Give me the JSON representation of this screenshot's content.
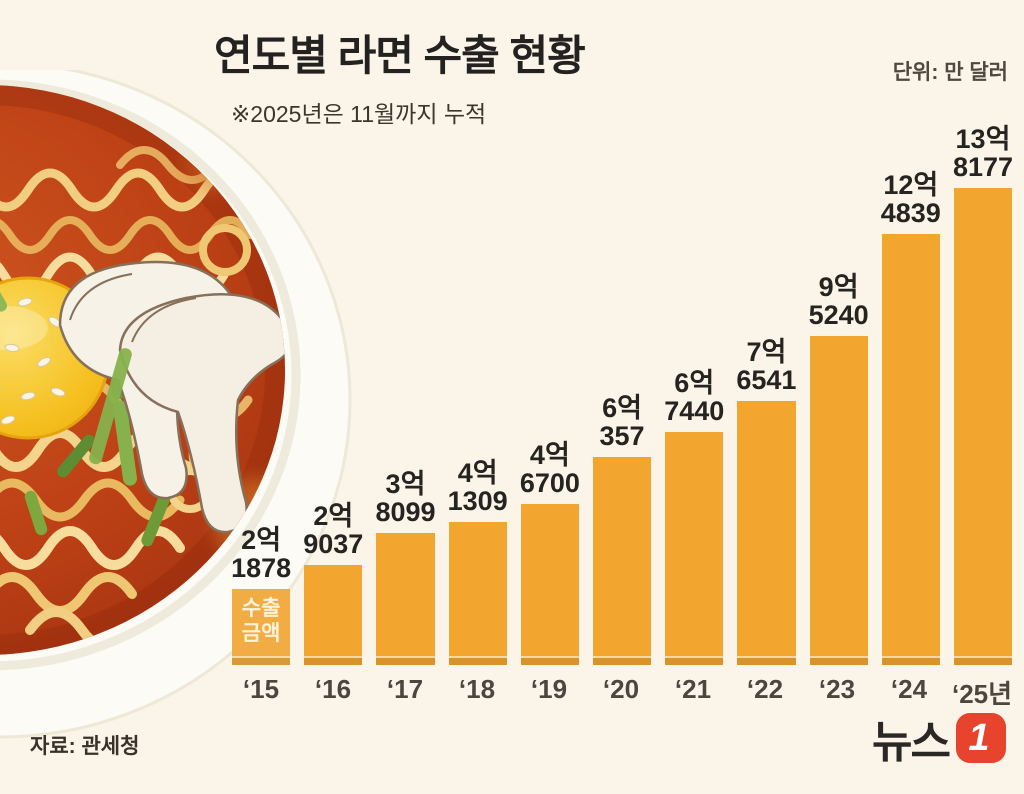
{
  "header": {
    "title": "연도별 라면 수출 현황",
    "subtitle": "※2025년은 11월까지 누적",
    "unit": "단위: 만 달러"
  },
  "chart_data": {
    "type": "bar",
    "title": "연도별 라면 수출 현황",
    "note": "※2025년은 11월까지 누적",
    "unit": "만 달러",
    "categories": [
      "‘15",
      "‘16",
      "‘17",
      "‘18",
      "‘19",
      "‘20",
      "‘21",
      "‘22",
      "‘23",
      "‘24",
      "‘25년"
    ],
    "values": [
      21878,
      29037,
      38099,
      41309,
      46700,
      60357,
      67440,
      76541,
      95240,
      124839,
      138177
    ],
    "value_labels": [
      [
        "2억",
        "1878"
      ],
      [
        "2억",
        "9037"
      ],
      [
        "3억",
        "8099"
      ],
      [
        "4억",
        "1309"
      ],
      [
        "4억",
        "6700"
      ],
      [
        "6억",
        "357"
      ],
      [
        "6억",
        "7440"
      ],
      [
        "7억",
        "6541"
      ],
      [
        "9억",
        "5240"
      ],
      [
        "12억",
        "4839"
      ],
      [
        "13억",
        "8177"
      ]
    ],
    "series_label": "수출 금액",
    "series_label_lines": [
      "수출",
      "금액"
    ],
    "bar_color": "#F2A52F",
    "first_bar_color": "#F1AC43",
    "xlabel": "",
    "ylabel": "",
    "ylim": [
      0,
      140000
    ],
    "grid": false,
    "legend_position": "inside-first-bar"
  },
  "footer": {
    "source": "자료: 관세청",
    "logo_text": "뉴스",
    "logo_numeral": "1",
    "logo_badge_color": "#E8432C"
  }
}
